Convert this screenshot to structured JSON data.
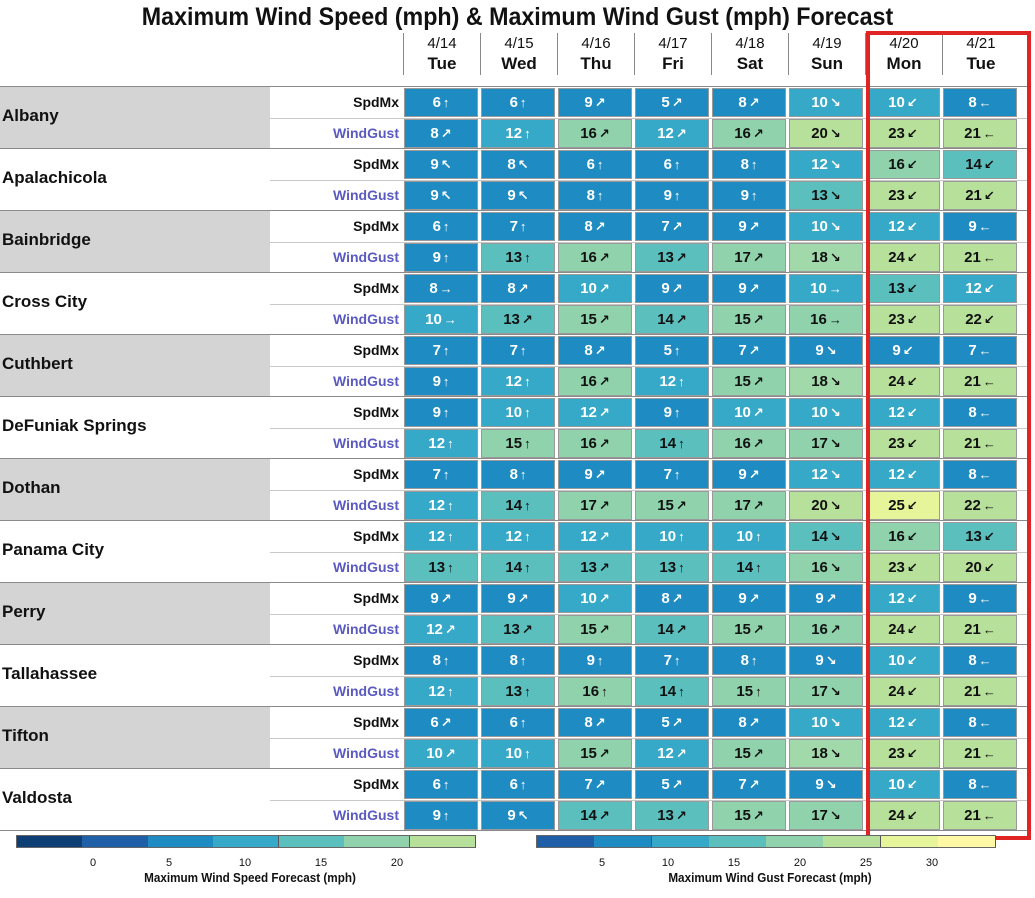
{
  "chart_data": {
    "type": "heatmap",
    "title": "Maximum Wind Speed (mph) & Maximum Wind Gust (mph) Forecast",
    "days": [
      {
        "date": "4/14",
        "day": "Tue"
      },
      {
        "date": "4/15",
        "day": "Wed"
      },
      {
        "date": "4/16",
        "day": "Thu"
      },
      {
        "date": "4/17",
        "day": "Fri"
      },
      {
        "date": "4/18",
        "day": "Sat"
      },
      {
        "date": "4/19",
        "day": "Sun"
      },
      {
        "date": "4/20",
        "day": "Mon"
      },
      {
        "date": "4/21",
        "day": "Tue"
      }
    ],
    "row_labels": {
      "speed": "SpdMx",
      "gust": "WindGust"
    },
    "cities": [
      {
        "name": "Albany",
        "speed": [
          [
            6,
            "N"
          ],
          [
            6,
            "N"
          ],
          [
            9,
            "NE"
          ],
          [
            5,
            "NE"
          ],
          [
            8,
            "NE"
          ],
          [
            10,
            "SE"
          ],
          [
            10,
            "SW"
          ],
          [
            8,
            "W"
          ]
        ],
        "gust": [
          [
            8,
            "NE"
          ],
          [
            12,
            "N"
          ],
          [
            16,
            "NE"
          ],
          [
            12,
            "NE"
          ],
          [
            16,
            "NE"
          ],
          [
            20,
            "SE"
          ],
          [
            23,
            "SW"
          ],
          [
            21,
            "W"
          ]
        ]
      },
      {
        "name": "Apalachicola",
        "speed": [
          [
            9,
            "NW"
          ],
          [
            8,
            "NW"
          ],
          [
            6,
            "N"
          ],
          [
            6,
            "N"
          ],
          [
            8,
            "N"
          ],
          [
            12,
            "SE"
          ],
          [
            16,
            "SW"
          ],
          [
            14,
            "WSW"
          ]
        ],
        "gust": [
          [
            9,
            "NW"
          ],
          [
            9,
            "NW"
          ],
          [
            8,
            "N"
          ],
          [
            9,
            "N"
          ],
          [
            9,
            "N"
          ],
          [
            13,
            "SE"
          ],
          [
            23,
            "SW"
          ],
          [
            21,
            "WSW"
          ]
        ]
      },
      {
        "name": "Bainbridge",
        "speed": [
          [
            6,
            "N"
          ],
          [
            7,
            "N"
          ],
          [
            8,
            "NE"
          ],
          [
            7,
            "NE"
          ],
          [
            9,
            "NE"
          ],
          [
            10,
            "SE"
          ],
          [
            12,
            "SW"
          ],
          [
            9,
            "W"
          ]
        ],
        "gust": [
          [
            9,
            "N"
          ],
          [
            13,
            "N"
          ],
          [
            16,
            "NE"
          ],
          [
            13,
            "NE"
          ],
          [
            17,
            "NE"
          ],
          [
            18,
            "SE"
          ],
          [
            24,
            "SW"
          ],
          [
            21,
            "W"
          ]
        ]
      },
      {
        "name": "Cross City",
        "speed": [
          [
            8,
            "E"
          ],
          [
            8,
            "NE"
          ],
          [
            10,
            "ENE"
          ],
          [
            9,
            "ENE"
          ],
          [
            9,
            "ENE"
          ],
          [
            10,
            "E"
          ],
          [
            13,
            "WSW"
          ],
          [
            12,
            "WSW"
          ]
        ],
        "gust": [
          [
            10,
            "E"
          ],
          [
            13,
            "NE"
          ],
          [
            15,
            "ENE"
          ],
          [
            14,
            "ENE"
          ],
          [
            15,
            "ENE"
          ],
          [
            16,
            "E"
          ],
          [
            23,
            "WSW"
          ],
          [
            22,
            "WSW"
          ]
        ]
      },
      {
        "name": "Cuthbert",
        "speed": [
          [
            7,
            "N"
          ],
          [
            7,
            "N"
          ],
          [
            8,
            "NE"
          ],
          [
            5,
            "N"
          ],
          [
            7,
            "NE"
          ],
          [
            9,
            "SE"
          ],
          [
            9,
            "SW"
          ],
          [
            7,
            "W"
          ]
        ],
        "gust": [
          [
            9,
            "N"
          ],
          [
            12,
            "N"
          ],
          [
            16,
            "NE"
          ],
          [
            12,
            "N"
          ],
          [
            15,
            "NE"
          ],
          [
            18,
            "SE"
          ],
          [
            24,
            "SW"
          ],
          [
            21,
            "W"
          ]
        ]
      },
      {
        "name": "DeFuniak Springs",
        "speed": [
          [
            9,
            "N"
          ],
          [
            10,
            "N"
          ],
          [
            12,
            "NE"
          ],
          [
            9,
            "N"
          ],
          [
            10,
            "NE"
          ],
          [
            10,
            "SE"
          ],
          [
            12,
            "SW"
          ],
          [
            8,
            "W"
          ]
        ],
        "gust": [
          [
            12,
            "N"
          ],
          [
            15,
            "N"
          ],
          [
            16,
            "NE"
          ],
          [
            14,
            "N"
          ],
          [
            16,
            "NE"
          ],
          [
            17,
            "SE"
          ],
          [
            23,
            "SW"
          ],
          [
            21,
            "W"
          ]
        ]
      },
      {
        "name": "Dothan",
        "speed": [
          [
            7,
            "N"
          ],
          [
            8,
            "N"
          ],
          [
            9,
            "NE"
          ],
          [
            7,
            "N"
          ],
          [
            9,
            "NE"
          ],
          [
            12,
            "SE"
          ],
          [
            12,
            "SW"
          ],
          [
            8,
            "W"
          ]
        ],
        "gust": [
          [
            12,
            "N"
          ],
          [
            14,
            "N"
          ],
          [
            17,
            "NE"
          ],
          [
            15,
            "NE"
          ],
          [
            17,
            "NE"
          ],
          [
            20,
            "SE"
          ],
          [
            25,
            "SW"
          ],
          [
            22,
            "W"
          ]
        ]
      },
      {
        "name": "Panama City",
        "speed": [
          [
            12,
            "N"
          ],
          [
            12,
            "N"
          ],
          [
            12,
            "NE"
          ],
          [
            10,
            "N"
          ],
          [
            10,
            "N"
          ],
          [
            14,
            "ESE"
          ],
          [
            16,
            "SW"
          ],
          [
            13,
            "WSW"
          ]
        ],
        "gust": [
          [
            13,
            "N"
          ],
          [
            14,
            "N"
          ],
          [
            13,
            "NE"
          ],
          [
            13,
            "N"
          ],
          [
            14,
            "N"
          ],
          [
            16,
            "ESE"
          ],
          [
            23,
            "SW"
          ],
          [
            20,
            "WSW"
          ]
        ]
      },
      {
        "name": "Perry",
        "speed": [
          [
            9,
            "NE"
          ],
          [
            9,
            "NE"
          ],
          [
            10,
            "NE"
          ],
          [
            8,
            "NE"
          ],
          [
            9,
            "NE"
          ],
          [
            9,
            "ENE"
          ],
          [
            12,
            "SW"
          ],
          [
            9,
            "W"
          ]
        ],
        "gust": [
          [
            12,
            "NE"
          ],
          [
            13,
            "NE"
          ],
          [
            15,
            "NE"
          ],
          [
            14,
            "NE"
          ],
          [
            15,
            "NE"
          ],
          [
            16,
            "ENE"
          ],
          [
            24,
            "SW"
          ],
          [
            21,
            "W"
          ]
        ]
      },
      {
        "name": "Tallahassee",
        "speed": [
          [
            8,
            "N"
          ],
          [
            8,
            "N"
          ],
          [
            9,
            "N"
          ],
          [
            7,
            "N"
          ],
          [
            8,
            "N"
          ],
          [
            9,
            "SE"
          ],
          [
            10,
            "SW"
          ],
          [
            8,
            "W"
          ]
        ],
        "gust": [
          [
            12,
            "N"
          ],
          [
            13,
            "N"
          ],
          [
            16,
            "N"
          ],
          [
            14,
            "N"
          ],
          [
            15,
            "N"
          ],
          [
            17,
            "SE"
          ],
          [
            24,
            "SW"
          ],
          [
            21,
            "W"
          ]
        ]
      },
      {
        "name": "Tifton",
        "speed": [
          [
            6,
            "NE"
          ],
          [
            6,
            "N"
          ],
          [
            8,
            "NE"
          ],
          [
            5,
            "NE"
          ],
          [
            8,
            "NE"
          ],
          [
            10,
            "SE"
          ],
          [
            12,
            "SW"
          ],
          [
            8,
            "W"
          ]
        ],
        "gust": [
          [
            10,
            "NE"
          ],
          [
            10,
            "N"
          ],
          [
            15,
            "NE"
          ],
          [
            12,
            "NE"
          ],
          [
            15,
            "NE"
          ],
          [
            18,
            "SE"
          ],
          [
            23,
            "SW"
          ],
          [
            21,
            "W"
          ]
        ]
      },
      {
        "name": "Valdosta",
        "speed": [
          [
            6,
            "N"
          ],
          [
            6,
            "N"
          ],
          [
            7,
            "NE"
          ],
          [
            5,
            "NE"
          ],
          [
            7,
            "NE"
          ],
          [
            9,
            "ESE"
          ],
          [
            10,
            "SW"
          ],
          [
            8,
            "W"
          ]
        ],
        "gust": [
          [
            9,
            "N"
          ],
          [
            9,
            "NNW"
          ],
          [
            14,
            "NE"
          ],
          [
            13,
            "NE"
          ],
          [
            15,
            "NE"
          ],
          [
            17,
            "ESE"
          ],
          [
            24,
            "SW"
          ],
          [
            21,
            "W"
          ]
        ]
      }
    ],
    "legends": [
      {
        "caption": "Maximum Wind Speed Forecast (mph)",
        "ticks": [
          "0",
          "5",
          "10",
          "15",
          "20"
        ],
        "colors": [
          "#0d3f74",
          "#1f5fa8",
          "#1e8cc3",
          "#36a9c8",
          "#5bbfbd",
          "#8fd2ac",
          "#b7e09b"
        ]
      },
      {
        "caption": "Maximum Wind Gust Forecast (mph)",
        "ticks": [
          "5",
          "10",
          "15",
          "20",
          "25",
          "30"
        ],
        "colors": [
          "#1f5fa8",
          "#1e8cc3",
          "#36a9c8",
          "#5bbfbd",
          "#8fd2ac",
          "#b7e09b",
          "#e6f59a",
          "#fff9a6"
        ]
      }
    ],
    "highlight_days": [
      "4/20",
      "4/21"
    ],
    "highlight_color": "#e02424"
  }
}
